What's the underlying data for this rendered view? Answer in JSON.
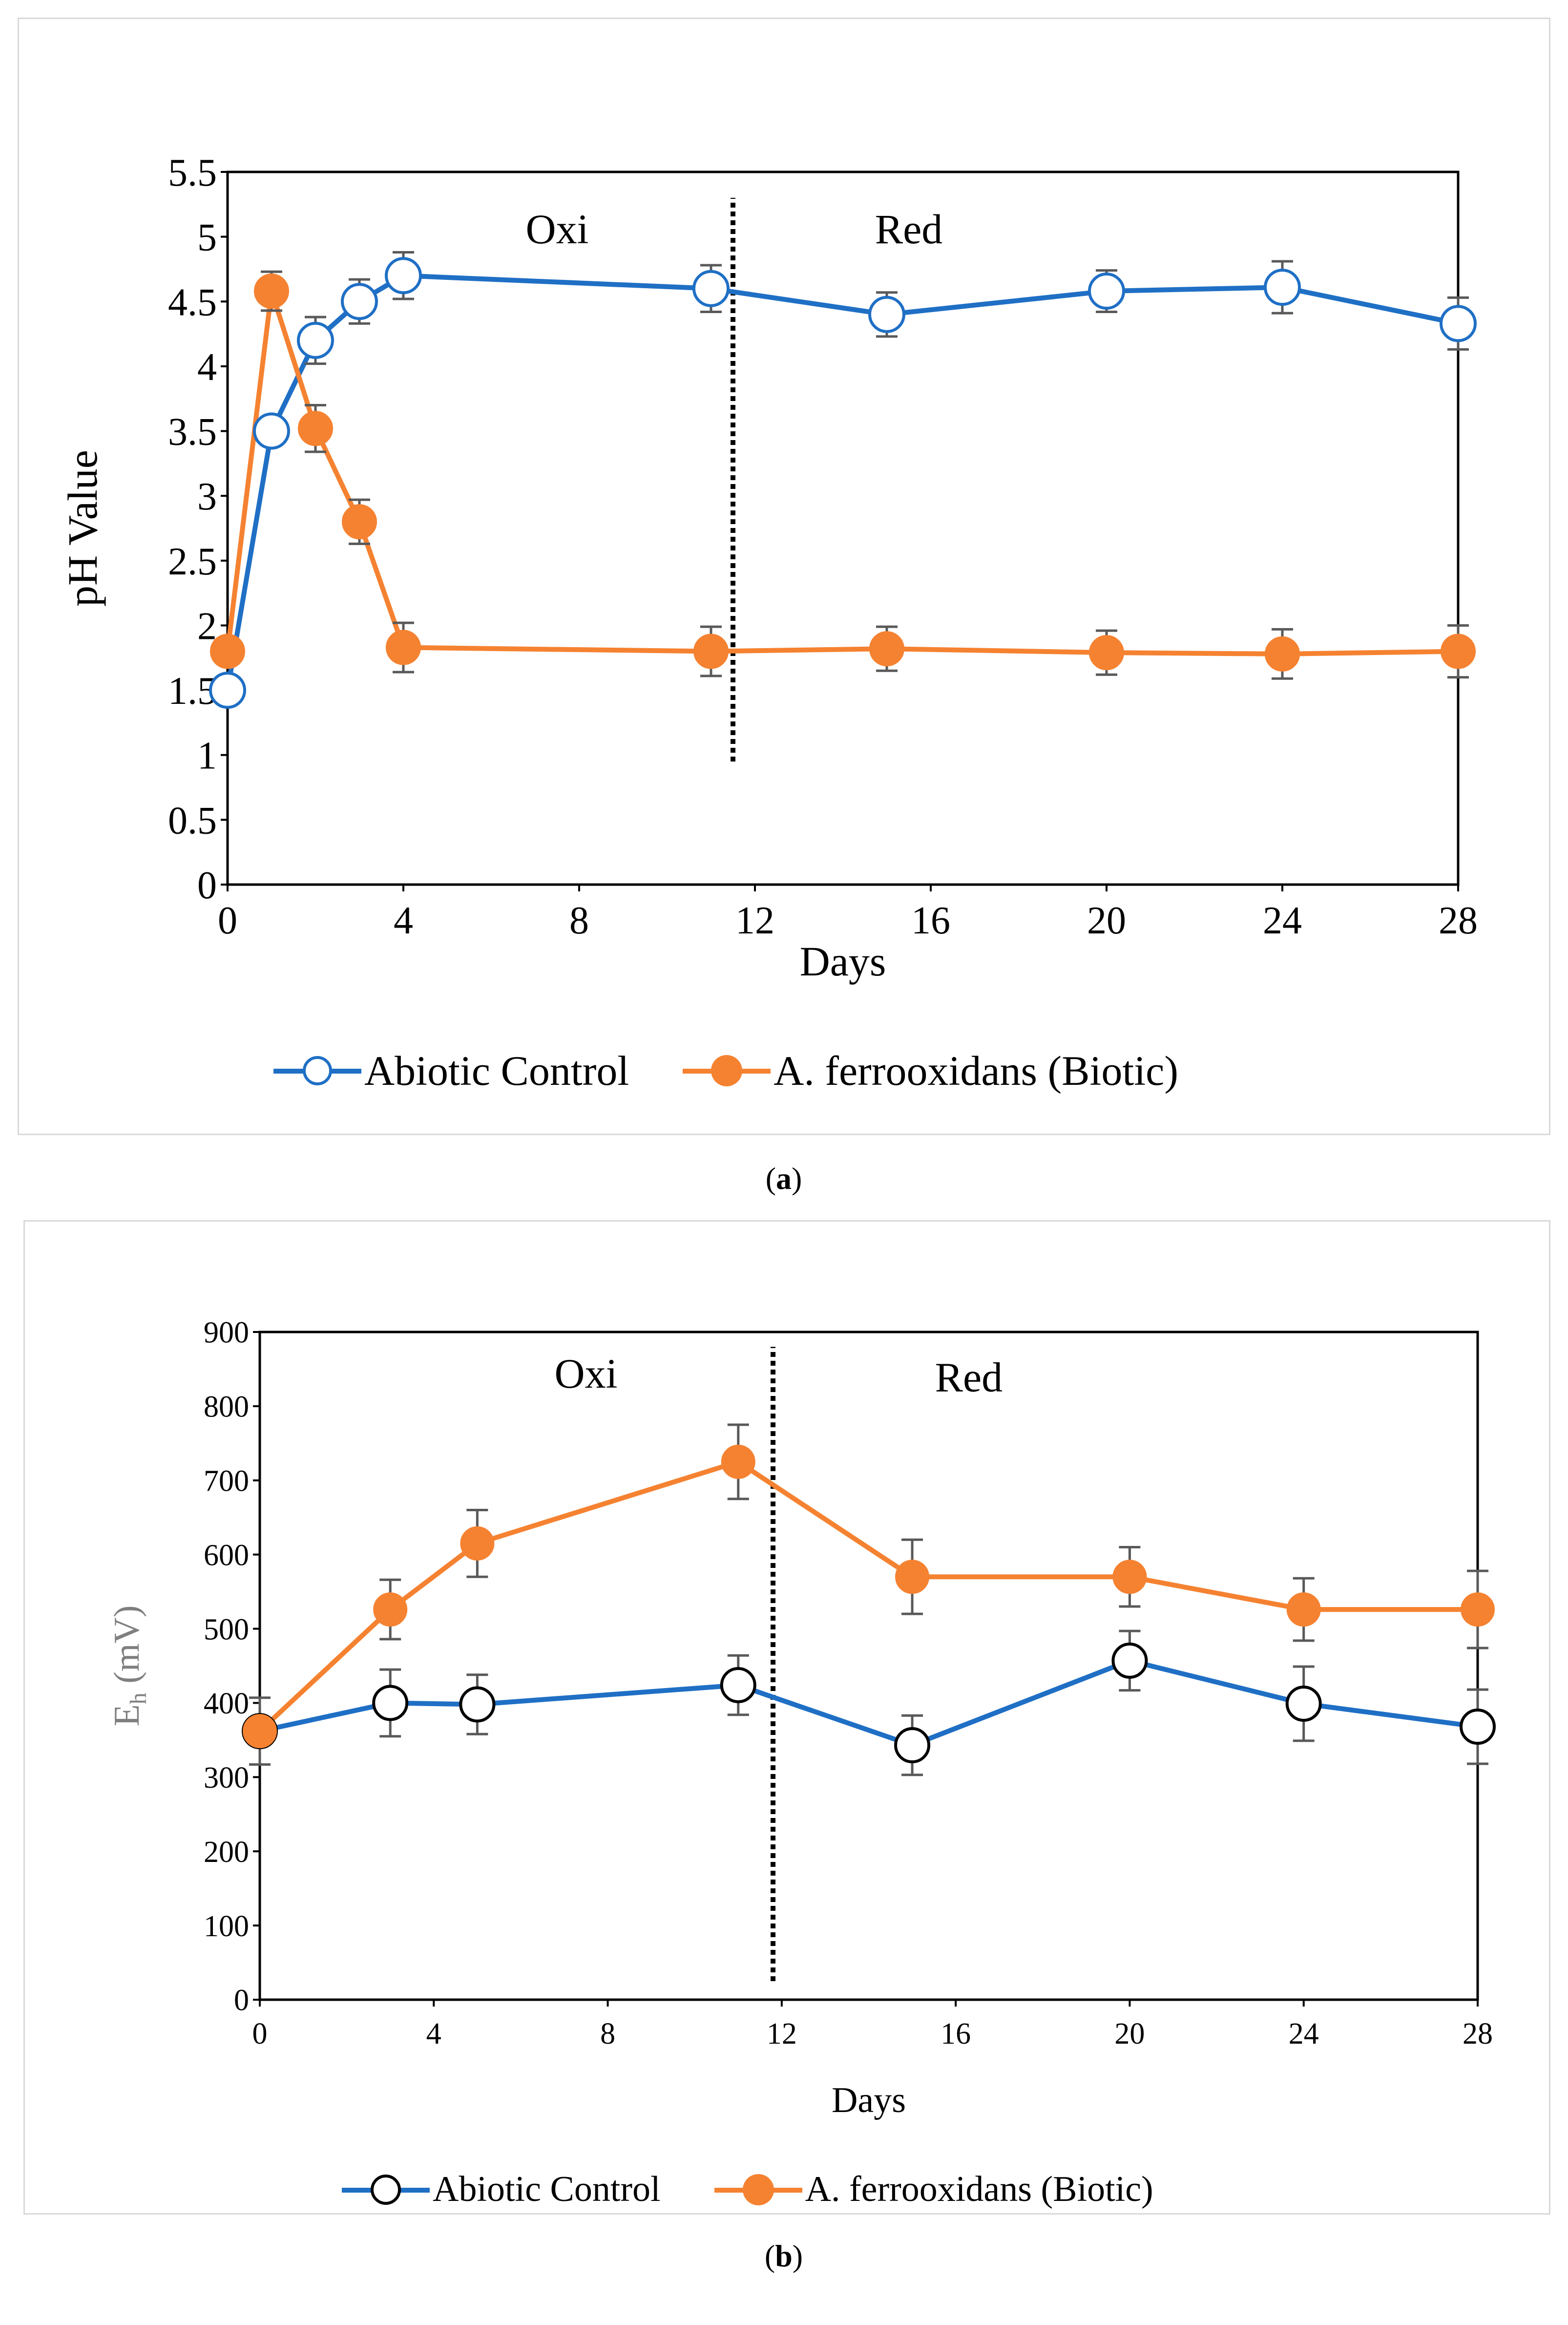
{
  "colors": {
    "abiotic": "#1f6fc5",
    "biotic": "#f58231",
    "error_bar": "#595959",
    "divider": "#000000",
    "panel_border": "#d9d9d9"
  },
  "captions": {
    "a_open": "(",
    "a_letter": "a",
    "a_close": ")",
    "b_open": "(",
    "b_letter": "b",
    "b_close": ")"
  },
  "legend": {
    "abiotic": "Abiotic Control",
    "biotic": "A. ferrooxidans (Biotic)"
  },
  "chart_data": [
    {
      "type": "line",
      "panel": "a",
      "xlabel": "Days",
      "ylabel": "pH Value",
      "xlim": [
        0,
        28
      ],
      "ylim": [
        0,
        5.5
      ],
      "xticks": [
        0,
        4,
        8,
        12,
        16,
        20,
        24,
        28
      ],
      "yticks": [
        0,
        0.5,
        1,
        1.5,
        2,
        2.5,
        3,
        3.5,
        4,
        4.5,
        5,
        5.5
      ],
      "ytick_labels": [
        "0",
        "0.5",
        "1",
        "1.5",
        "2",
        "2.5",
        "3",
        "3.5",
        "4",
        "4.5",
        "5",
        "5.5"
      ],
      "grid": false,
      "legend_position": "bottom",
      "divider": {
        "x": 11.5,
        "y_from": 0.95,
        "y_to": 5.3
      },
      "phase_labels": [
        {
          "text": "Oxi",
          "x": 7.5,
          "y": 4.95
        },
        {
          "text": "Red",
          "x": 15.5,
          "y": 4.95
        }
      ],
      "series": [
        {
          "name": "Abiotic Control",
          "marker": "open-circle",
          "x": [
            0,
            1,
            2,
            3,
            4,
            11,
            15,
            20,
            24,
            28
          ],
          "y": [
            1.5,
            3.5,
            4.2,
            4.5,
            4.7,
            4.6,
            4.4,
            4.58,
            4.61,
            4.33
          ],
          "err": [
            0,
            0,
            0.18,
            0.17,
            0.18,
            0.18,
            0.17,
            0.16,
            0.2,
            0.2
          ]
        },
        {
          "name": "A. ferrooxidans (Biotic)",
          "marker": "filled-circle",
          "x": [
            0,
            1,
            2,
            3,
            4,
            11,
            15,
            20,
            24,
            28
          ],
          "y": [
            1.8,
            4.58,
            3.52,
            2.8,
            1.83,
            1.8,
            1.82,
            1.79,
            1.78,
            1.8
          ],
          "err": [
            0,
            0.15,
            0.18,
            0.17,
            0.19,
            0.19,
            0.17,
            0.17,
            0.19,
            0.2
          ]
        }
      ]
    },
    {
      "type": "line",
      "panel": "b",
      "xlabel": "Days",
      "ylabel_main": "E",
      "ylabel_sub": "h",
      "ylabel_unit": " (mV)",
      "xlim": [
        0,
        28
      ],
      "ylim": [
        0,
        900
      ],
      "xticks": [
        0,
        4,
        8,
        12,
        16,
        20,
        24,
        28
      ],
      "yticks": [
        0,
        100,
        200,
        300,
        400,
        500,
        600,
        700,
        800,
        900
      ],
      "ytick_labels": [
        "0",
        "100",
        "200",
        "300",
        "400",
        "500",
        "600",
        "700",
        "800",
        "900"
      ],
      "grid": false,
      "legend_position": "bottom",
      "divider": {
        "x": 11.8,
        "y_from": 25,
        "y_to": 880
      },
      "phase_labels": [
        {
          "text": "Oxi",
          "x": 7.5,
          "y": 825
        },
        {
          "text": "Red",
          "x": 16.3,
          "y": 820
        }
      ],
      "series": [
        {
          "name": "Abiotic Control",
          "marker": "open-circle-black",
          "x": [
            0,
            3,
            5,
            11,
            15,
            20,
            24,
            28
          ],
          "y": [
            362,
            400,
            398,
            424,
            343,
            457,
            399,
            368
          ],
          "err": [
            45,
            45,
            40,
            40,
            40,
            40,
            50,
            50
          ]
        },
        {
          "name": "A. ferrooxidans (Biotic)",
          "marker": "filled-circle",
          "x": [
            0,
            3,
            5,
            11,
            15,
            20,
            24,
            28
          ],
          "y": [
            362,
            526,
            615,
            725,
            570,
            570,
            526,
            526
          ],
          "err": [
            0,
            40,
            45,
            50,
            50,
            40,
            42,
            52
          ]
        }
      ]
    }
  ]
}
